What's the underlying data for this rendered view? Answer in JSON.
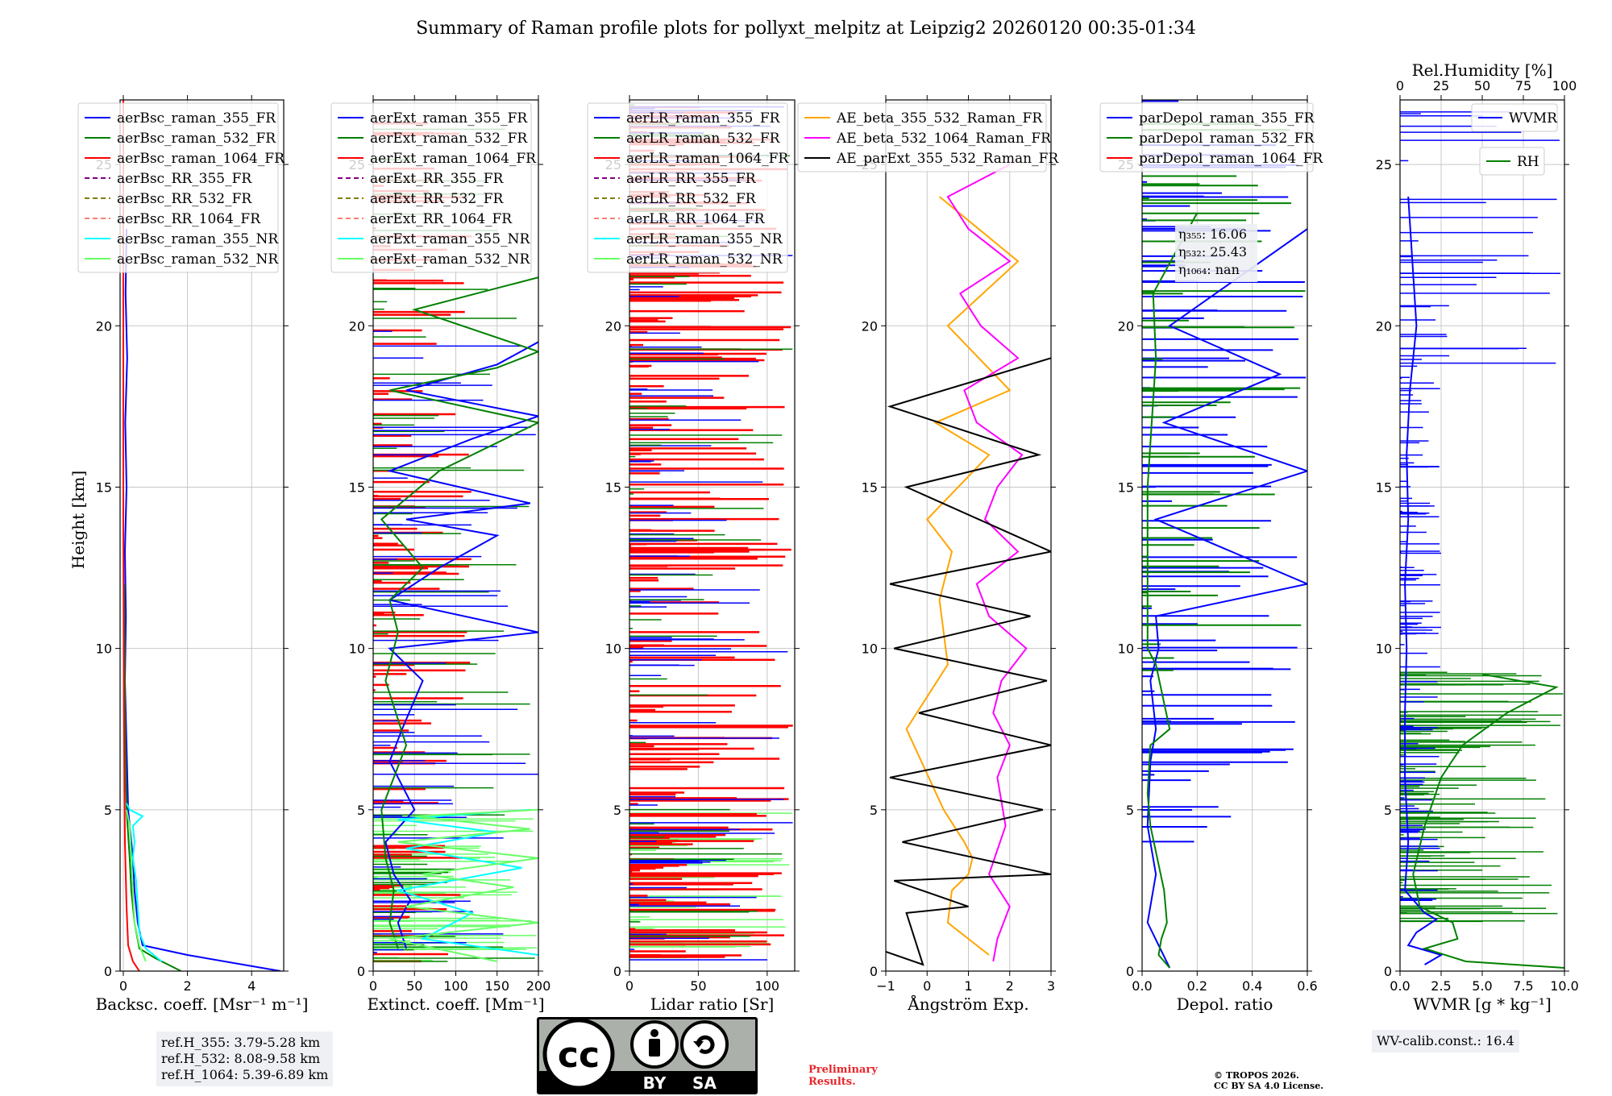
{
  "title": "Summary of Raman profile plots for pollyxt_melpitz at Leipzig2 20260120 00:35-01:34",
  "colors": {
    "blue": "#0000ff",
    "green": "#008000",
    "red": "#ff0000",
    "purple": "#800080",
    "olive": "#808000",
    "salmon": "#fa8072",
    "cyan": "#00ffff",
    "lightgreen": "#66ff66",
    "orange": "#ffa500",
    "magenta": "#ff00ff",
    "black": "#000000"
  },
  "chart_data": [
    {
      "type": "line",
      "id": "bsc",
      "xlabel": "Backsc. coeff. [Msr⁻¹ m⁻¹]",
      "ylabel": "Height [km]",
      "xlim": [
        -0.1,
        5.0
      ],
      "ylim": [
        0,
        27
      ],
      "xticks": [
        0,
        2,
        4
      ],
      "xticklabels": [
        "0",
        "2",
        "4"
      ],
      "yticks": [
        0,
        5,
        10,
        15,
        20,
        25
      ],
      "yticklabels": [
        "0",
        "5",
        "10",
        "15",
        "20",
        "25"
      ],
      "grid": true,
      "legend_position": "top-left",
      "series": [
        {
          "name": "aerBsc_raman_355_FR",
          "color": "blue",
          "dash": "",
          "x": [
            4.9,
            2.0,
            0.6,
            0.45,
            0.35,
            0.3,
            0.15,
            0.1,
            0.05,
            0.08,
            0.05,
            0.1,
            0.06,
            0.12,
            0.07,
            0.1
          ],
          "y": [
            0,
            0.5,
            0.8,
            1.5,
            2.5,
            3.5,
            5,
            7,
            9,
            11,
            13,
            15,
            17,
            19,
            21,
            23
          ]
        },
        {
          "name": "aerBsc_raman_532_FR",
          "color": "green",
          "dash": "",
          "x": [
            1.8,
            1.0,
            0.5,
            0.35,
            0.25,
            0.2,
            0.1,
            0.05,
            0.03
          ],
          "y": [
            0,
            0.4,
            0.7,
            1.5,
            2.5,
            3.5,
            5,
            8,
            12
          ]
        },
        {
          "name": "aerBsc_raman_1064_FR",
          "color": "red",
          "dash": "",
          "x": [
            0.5,
            0.3,
            0.15,
            0.1,
            0.05,
            0.02,
            0.0,
            0.0,
            0.0
          ],
          "y": [
            0,
            0.3,
            0.8,
            2,
            4,
            8,
            14,
            20,
            27
          ]
        },
        {
          "name": "aerBsc_RR_355_FR",
          "color": "purple",
          "dash": "6,4",
          "x": [],
          "y": []
        },
        {
          "name": "aerBsc_RR_532_FR",
          "color": "olive",
          "dash": "6,4",
          "x": [],
          "y": []
        },
        {
          "name": "aerBsc_RR_1064_FR",
          "color": "salmon",
          "dash": "6,4",
          "x": [],
          "y": []
        },
        {
          "name": "aerBsc_raman_355_NR",
          "color": "cyan",
          "dash": "",
          "x": [
            1.2,
            0.7,
            0.5,
            0.45,
            0.4,
            0.3,
            0.35,
            0.3,
            0.6,
            0.2,
            0.1
          ],
          "y": [
            0.3,
            0.7,
            1.2,
            2.0,
            2.8,
            3.5,
            4.0,
            4.5,
            4.8,
            5.0,
            5.2
          ]
        },
        {
          "name": "aerBsc_raman_532_NR",
          "color": "lightgreen",
          "dash": "",
          "x": [
            0.7,
            0.5,
            0.35,
            0.3,
            0.25,
            0.2,
            0.1
          ],
          "y": [
            0.3,
            0.8,
            1.5,
            2.5,
            3.5,
            4.5,
            5.0
          ]
        }
      ]
    },
    {
      "type": "line",
      "id": "ext",
      "xlabel": "Extinct. coeff. [Mm⁻¹]",
      "xlim": [
        0,
        200
      ],
      "ylim": [
        0,
        27
      ],
      "xticks": [
        0,
        50,
        100,
        150,
        200
      ],
      "xticklabels": [
        "0",
        "50",
        "100",
        "150",
        "200"
      ],
      "yticks": [
        0,
        5,
        10,
        15,
        20,
        25
      ],
      "yticklabels": [
        "0",
        "5",
        "10",
        "15",
        "20",
        "25"
      ],
      "grid": true,
      "legend_position": "top-left",
      "series": [
        {
          "name": "aerExt_raman_355_FR",
          "color": "blue",
          "dash": "",
          "x": [
            40,
            30,
            45,
            25,
            15,
            50,
            20,
            35,
            60,
            20,
            200,
            20,
            80,
            150,
            40,
            190,
            20,
            120,
            200,
            40,
            150,
            200
          ],
          "y": [
            0.7,
            1.5,
            2.2,
            3.0,
            4.0,
            5.0,
            6.5,
            7.5,
            9.0,
            10.0,
            10.5,
            11.5,
            12.5,
            13.5,
            14.0,
            14.5,
            15.5,
            16.5,
            17.2,
            18.0,
            18.8,
            19.5
          ]
        },
        {
          "name": "aerExt_raman_532_FR",
          "color": "green",
          "dash": "",
          "x": [
            30,
            20,
            25,
            15,
            10,
            40,
            15,
            30,
            20,
            60,
            10,
            80,
            200,
            20,
            150,
            200,
            50,
            200
          ],
          "y": [
            0.7,
            1.5,
            2.5,
            3.5,
            5.0,
            7.0,
            9.0,
            10.5,
            11.5,
            12.5,
            14.0,
            15.5,
            17.0,
            18.0,
            18.7,
            19.2,
            20.5,
            21.5
          ]
        },
        {
          "name": "aerExt_raman_1064_FR",
          "color": "red",
          "dash": "",
          "x": [],
          "y": []
        },
        {
          "name": "aerExt_RR_355_FR",
          "color": "purple",
          "dash": "6,4",
          "x": [],
          "y": []
        },
        {
          "name": "aerExt_RR_532_FR",
          "color": "olive",
          "dash": "6,4",
          "x": [],
          "y": []
        },
        {
          "name": "aerExt_RR_1064_FR",
          "color": "salmon",
          "dash": "6,4",
          "x": [],
          "y": []
        },
        {
          "name": "aerExt_raman_355_NR",
          "color": "cyan",
          "dash": "",
          "x": [
            200,
            60,
            120,
            30,
            180,
            40,
            150,
            30,
            190
          ],
          "y": [
            0.5,
            1.0,
            1.8,
            2.5,
            3.2,
            3.8,
            4.3,
            4.7,
            5.0
          ]
        },
        {
          "name": "aerExt_raman_532_NR",
          "color": "lightgreen",
          "dash": "",
          "x": [
            150,
            20,
            200,
            40,
            170,
            60,
            200,
            30,
            190,
            50,
            200
          ],
          "y": [
            0.3,
            1.0,
            1.5,
            2.0,
            2.6,
            3.0,
            3.5,
            4.0,
            4.4,
            4.8,
            5.0
          ]
        }
      ]
    },
    {
      "type": "line",
      "id": "lr",
      "xlabel": "Lidar ratio [Sr]",
      "xlim": [
        0,
        120
      ],
      "ylim": [
        0,
        27
      ],
      "xticks": [
        0,
        50,
        100
      ],
      "xticklabels": [
        "0",
        "50",
        "100"
      ],
      "yticks": [
        0,
        5,
        10,
        15,
        20,
        25
      ],
      "yticklabels": [
        "0",
        "5",
        "10",
        "15",
        "20",
        "25"
      ],
      "grid": true,
      "legend_position": "top-left",
      "series": [
        {
          "name": "aerLR_raman_355_FR",
          "color": "blue",
          "dash": "",
          "x": [],
          "y": []
        },
        {
          "name": "aerLR_raman_532_FR",
          "color": "green",
          "dash": "",
          "x": [],
          "y": []
        },
        {
          "name": "aerLR_raman_1064_FR",
          "color": "red",
          "dash": "",
          "x": [],
          "y": []
        },
        {
          "name": "aerLR_RR_355_FR",
          "color": "purple",
          "dash": "6,4",
          "x": [],
          "y": []
        },
        {
          "name": "aerLR_RR_532_FR",
          "color": "olive",
          "dash": "6,4",
          "x": [],
          "y": []
        },
        {
          "name": "aerLR_RR_1064_FR",
          "color": "salmon",
          "dash": "6,4",
          "x": [],
          "y": []
        },
        {
          "name": "aerLR_raman_355_NR",
          "color": "cyan",
          "dash": "",
          "x": [],
          "y": []
        },
        {
          "name": "aerLR_raman_532_NR",
          "color": "lightgreen",
          "dash": "",
          "x": [],
          "y": []
        }
      ]
    },
    {
      "type": "line",
      "id": "ae",
      "xlabel": "Ångström Exp.",
      "xlim": [
        -1,
        3
      ],
      "ylim": [
        0,
        27
      ],
      "xticks": [
        -1,
        0,
        1,
        2,
        3
      ],
      "xticklabels": [
        "−1",
        "0",
        "1",
        "2",
        "3"
      ],
      "yticks": [
        0,
        5,
        10,
        15,
        20,
        25
      ],
      "yticklabels": [
        "0",
        "5",
        "10",
        "15",
        "20",
        "25"
      ],
      "grid": true,
      "legend_position": "top-left",
      "series": [
        {
          "name": "AE_beta_355_532_Raman_FR",
          "color": "orange",
          "dash": "",
          "x": [
            1.5,
            0.5,
            0.6,
            1.0,
            1.1,
            0.9,
            0.4,
            -0.5,
            0.5,
            0.3,
            0.6,
            0.0,
            1.5,
            0.2,
            2.0,
            0.5,
            2.2,
            0.3
          ],
          "y": [
            0.5,
            1.5,
            2.5,
            3.0,
            3.5,
            4.0,
            5.0,
            7.5,
            9.5,
            11.5,
            13.0,
            14.0,
            16.0,
            17.0,
            18.0,
            20.0,
            22.0,
            24.0
          ]
        },
        {
          "name": "AE_beta_532_1064_Raman_FR",
          "color": "magenta",
          "dash": "",
          "x": [
            1.6,
            1.7,
            2.0,
            1.5,
            1.9,
            1.7,
            2.0,
            1.6,
            1.8,
            2.4,
            1.5,
            1.2,
            2.2,
            1.4,
            1.7,
            2.3,
            1.2,
            0.9,
            2.2,
            1.3,
            0.8,
            2.0,
            1.0,
            0.5,
            2.0
          ],
          "y": [
            0.3,
            1.0,
            2.0,
            3.0,
            4.5,
            6.0,
            7.0,
            8.0,
            9.0,
            10.0,
            11.0,
            12.0,
            13.0,
            14.0,
            15.0,
            16.0,
            17.0,
            18.0,
            19.0,
            20.0,
            21.0,
            22.0,
            23.0,
            24.0,
            25.0
          ]
        },
        {
          "name": "AE_parExt_355_532_Raman_FR",
          "color": "black",
          "dash": "",
          "x": [
            -1.0,
            -0.1,
            -0.5,
            1.0,
            -0.8,
            3.0,
            -0.6,
            2.8,
            -0.9,
            3.0,
            -0.2,
            2.9,
            -0.8,
            2.5,
            -0.9,
            3.0,
            -0.5,
            2.7,
            -0.9,
            3.0
          ],
          "y": [
            0.6,
            0.2,
            1.8,
            2.0,
            2.8,
            3.0,
            4.0,
            5.0,
            6.0,
            7.0,
            8.0,
            9.0,
            10.0,
            11.0,
            12.0,
            13.0,
            15.0,
            16.0,
            17.5,
            19.0
          ]
        }
      ]
    },
    {
      "type": "line",
      "id": "depol",
      "xlabel": "Depol. ratio",
      "xlim": [
        0,
        0.6
      ],
      "ylim": [
        0,
        27
      ],
      "xticks": [
        0,
        0.2,
        0.4,
        0.6
      ],
      "xticklabels": [
        "0.0",
        "0.2",
        "0.4",
        "0.6"
      ],
      "yticks": [
        0,
        5,
        10,
        15,
        20,
        25
      ],
      "yticklabels": [
        "0",
        "5",
        "10",
        "15",
        "20",
        "25"
      ],
      "grid": true,
      "legend_position": "top-left",
      "annotation": [
        "η₃₅₅: 16.06",
        "η₅₃₂: 25.43",
        "η₁₀₆₄: nan"
      ],
      "series": [
        {
          "name": "parDepol_raman_355_FR",
          "color": "blue",
          "dash": "",
          "x": [
            0.1,
            0.02,
            0.05,
            0.02,
            0.03,
            0.05,
            0.03,
            0.06,
            0.05,
            0.6,
            0.05,
            0.6,
            0.08,
            0.5,
            0.1,
            0.6
          ],
          "y": [
            0.1,
            1.5,
            3.0,
            4.5,
            6.5,
            7.5,
            9.0,
            10.0,
            11.0,
            12.0,
            14.0,
            15.5,
            17.0,
            18.5,
            20.0,
            23.0
          ]
        },
        {
          "name": "parDepol_raman_532_FR",
          "color": "green",
          "dash": "",
          "x": [
            0.1,
            0.06,
            0.07,
            0.09,
            0.08,
            0.03,
            0.02,
            0.03,
            0.1,
            0.05,
            0.02,
            0.02,
            0.05,
            0.04,
            0.2
          ],
          "y": [
            0.1,
            0.5,
            1.0,
            1.5,
            2.5,
            4.5,
            5.5,
            7.0,
            7.5,
            9.5,
            10.0,
            15.0,
            19.0,
            21.0,
            23.5
          ]
        },
        {
          "name": "parDepol_raman_1064_FR",
          "color": "red",
          "dash": "",
          "x": [],
          "y": []
        }
      ]
    },
    {
      "type": "line",
      "id": "wv",
      "xlabel": "WVMR [g * kg⁻¹]",
      "top_xlabel": "Rel.Humidity [%]",
      "xlim": [
        0,
        10
      ],
      "ylim": [
        0,
        27
      ],
      "xticks": [
        0,
        2.5,
        5,
        7.5,
        10
      ],
      "xticklabels": [
        "0.0",
        "2.5",
        "5.0",
        "7.5",
        "10.0"
      ],
      "top_xticks": [
        0,
        25,
        50,
        75,
        100
      ],
      "top_xticklabels": [
        "0",
        "25",
        "50",
        "75",
        "100"
      ],
      "yticks": [
        0,
        5,
        10,
        15,
        20,
        25
      ],
      "yticklabels": [
        "0",
        "5",
        "10",
        "15",
        "20",
        "25"
      ],
      "grid": true,
      "series": [
        {
          "name": "WVMR",
          "color": "blue",
          "dash": "",
          "x": [
            1.5,
            2.5,
            0.5,
            1.0,
            2.2,
            1.5,
            0.3,
            0.5,
            0.3,
            0.3,
            0.4,
            0.3,
            0.5,
            0.4,
            0.6,
            1.0,
            0.5
          ],
          "y": [
            0.2,
            0.5,
            0.8,
            1.2,
            1.6,
            1.8,
            2.5,
            4.0,
            6.0,
            8.0,
            10.0,
            12.0,
            14.0,
            16.0,
            18.0,
            20.0,
            24.0
          ]
        },
        {
          "name": "RH",
          "color": "green",
          "dash": "",
          "x": [
            10,
            4,
            1.5,
            3.5,
            3.2,
            1.2,
            0.8,
            1.5,
            2.5,
            3.8,
            6.5,
            9.5,
            5.0
          ],
          "y": [
            0.1,
            0.3,
            0.7,
            1.0,
            1.5,
            2.0,
            3.0,
            4.5,
            6.0,
            7.0,
            8.0,
            8.8,
            9.2
          ]
        }
      ]
    }
  ],
  "notes": {
    "ref_h_355": "ref.H_355: 3.79-5.28 km",
    "ref_h_532": "ref.H_532: 8.08-9.58 km",
    "ref_h_1064": "ref.H_1064: 5.39-6.89 km",
    "wv_calib": "WV-calib.const.: 16.4",
    "preliminary_line1": "Preliminary",
    "preliminary_line2": "Results.",
    "copyright_line1": "© TROPOS 2026.",
    "copyright_line2": "CC BY SA 4.0 License."
  },
  "license_badge": {
    "cc": "cc",
    "by": "BY",
    "sa": "SA"
  }
}
